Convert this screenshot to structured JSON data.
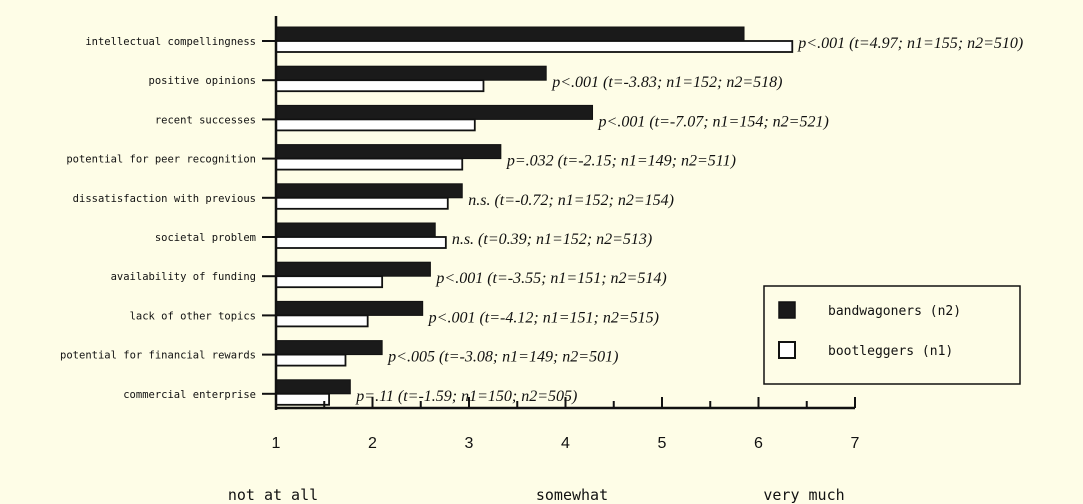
{
  "chart_data": {
    "type": "bar",
    "orientation": "horizontal",
    "title": "",
    "xlabel": "",
    "ylabel": "",
    "xlim": [
      1,
      7
    ],
    "ticks": [
      "1",
      "2",
      "3",
      "4",
      "5",
      "6",
      "7"
    ],
    "scale_labels": [
      "not at all",
      "somewhat",
      "very much"
    ],
    "grid": false,
    "legend_position": "right",
    "categories": [
      "intellectual compellingness",
      "positive opinions",
      "recent successes",
      "potential for peer recognition",
      "dissatisfaction with previous",
      "societal problem",
      "availability of funding",
      "lack of other topics",
      "potential for financial rewards",
      "commercial enterprise"
    ],
    "series": [
      {
        "name": "bandwagoners (n2)",
        "color": "#1a1a1a",
        "values": [
          5.85,
          3.8,
          4.28,
          3.33,
          2.93,
          2.65,
          2.6,
          2.52,
          2.1,
          1.77
        ]
      },
      {
        "name": "bootleggers (n1)",
        "color": "#ffffff",
        "values": [
          6.35,
          3.15,
          3.06,
          2.93,
          2.78,
          2.76,
          2.1,
          1.95,
          1.72,
          1.55
        ]
      }
    ],
    "annotations": [
      "p<.001 (t=4.97; n1=155; n2=510)",
      "p<.001 (t=-3.83; n1=152; n2=518)",
      "p<.001 (t=-7.07; n1=154; n2=521)",
      "p=.032 (t=-2.15; n1=149; n2=511)",
      "n.s. (t=-0.72; n1=152; n2=154)",
      "n.s. (t=0.39; n1=152; n2=513)",
      "p<.001 (t=-3.55; n1=151; n2=514)",
      "p<.001 (t=-4.12; n1=151; n2=515)",
      "p<.005 (t=-3.08; n1=149; n2=501)",
      "p=.11 (t=-1.59; n1=150; n2=505)"
    ]
  }
}
